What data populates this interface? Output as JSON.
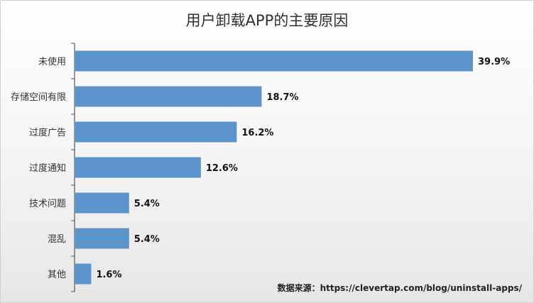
{
  "chart_data": {
    "type": "bar",
    "orientation": "horizontal",
    "title": "用户卸载APP的主要原因",
    "categories": [
      "未使用",
      "存储空间有限",
      "过度广告",
      "过度通知",
      "技术问题",
      "混乱",
      "其他"
    ],
    "values": [
      39.9,
      18.7,
      16.2,
      12.6,
      5.4,
      5.4,
      1.6
    ],
    "value_labels": [
      "39.9%",
      "18.7%",
      "16.2%",
      "12.6%",
      "5.4%",
      "5.4%",
      "1.6%"
    ],
    "xlim": [
      0,
      40
    ],
    "grid": false,
    "legend": "none",
    "bar_color": "#5b93cb"
  },
  "source_text": "数据来源：https://clevertap.com/blog/uninstall-apps/"
}
